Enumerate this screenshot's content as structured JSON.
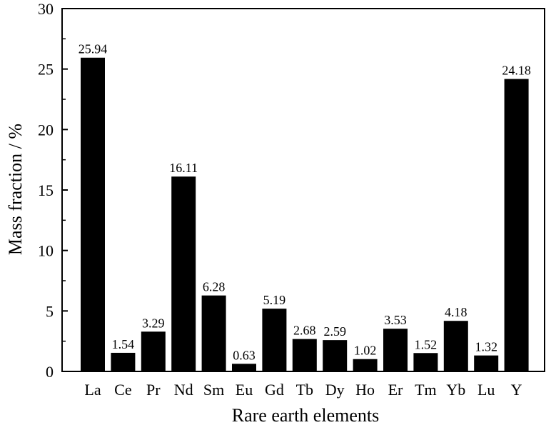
{
  "chart_data": {
    "type": "bar",
    "categories": [
      "La",
      "Ce",
      "Pr",
      "Nd",
      "Sm",
      "Eu",
      "Gd",
      "Tb",
      "Dy",
      "Ho",
      "Er",
      "Tm",
      "Yb",
      "Lu",
      "Y"
    ],
    "values": [
      25.94,
      1.54,
      3.29,
      16.11,
      6.28,
      0.63,
      5.19,
      2.68,
      2.59,
      1.02,
      3.53,
      1.52,
      4.18,
      1.32,
      24.18
    ],
    "data_labels": [
      "25.94",
      "1.54",
      "3.29",
      "16.11",
      "6.28",
      "0.63",
      "5.19",
      "2.68",
      "2.59",
      "1.02",
      "3.53",
      "1.52",
      "4.18",
      "1.32",
      "24.18"
    ],
    "title": "",
    "xlabel": "Rare earth elements",
    "ylabel": "Mass fraction / %",
    "ylim": [
      0,
      30
    ],
    "yticks": [
      0,
      5,
      10,
      15,
      20,
      25,
      30
    ],
    "bar_color": "#000000",
    "grid": false,
    "legend": "none"
  }
}
